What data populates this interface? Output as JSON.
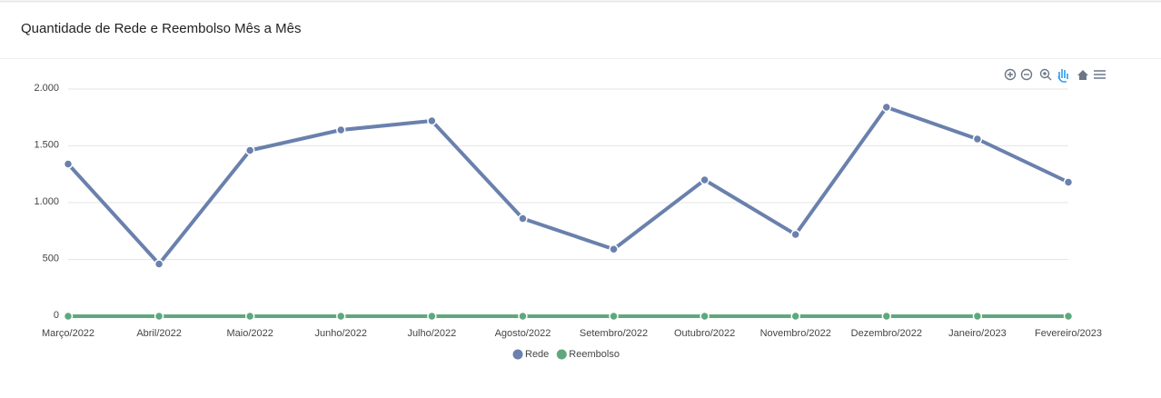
{
  "chart_data": {
    "type": "line",
    "title": "Quantidade de Rede e Reembolso Mês a Mês",
    "categories": [
      "Março/2022",
      "Abril/2022",
      "Maio/2022",
      "Junho/2022",
      "Julho/2022",
      "Agosto/2022",
      "Setembro/2022",
      "Outubro/2022",
      "Novembro/2022",
      "Dezembro/2022",
      "Janeiro/2023",
      "Fevereiro/2023"
    ],
    "series": [
      {
        "name": "Rede",
        "color": "#6a80ad",
        "values": [
          1340,
          460,
          1460,
          1640,
          1720,
          860,
          590,
          1200,
          720,
          1840,
          1560,
          1180
        ]
      },
      {
        "name": "Reembolso",
        "color": "#5fa87e",
        "values": [
          0,
          0,
          0,
          0,
          0,
          0,
          0,
          0,
          0,
          0,
          0,
          0
        ]
      }
    ],
    "ylim": [
      0,
      2000
    ],
    "yticks": [
      0,
      {
        "value": 500,
        "label": "500"
      },
      {
        "value": 1000,
        "label": "1.000"
      },
      {
        "value": 1500,
        "label": "1.500"
      },
      {
        "value": 2000,
        "label": "2.000"
      }
    ],
    "grid": true,
    "legend": "bottom"
  }
}
